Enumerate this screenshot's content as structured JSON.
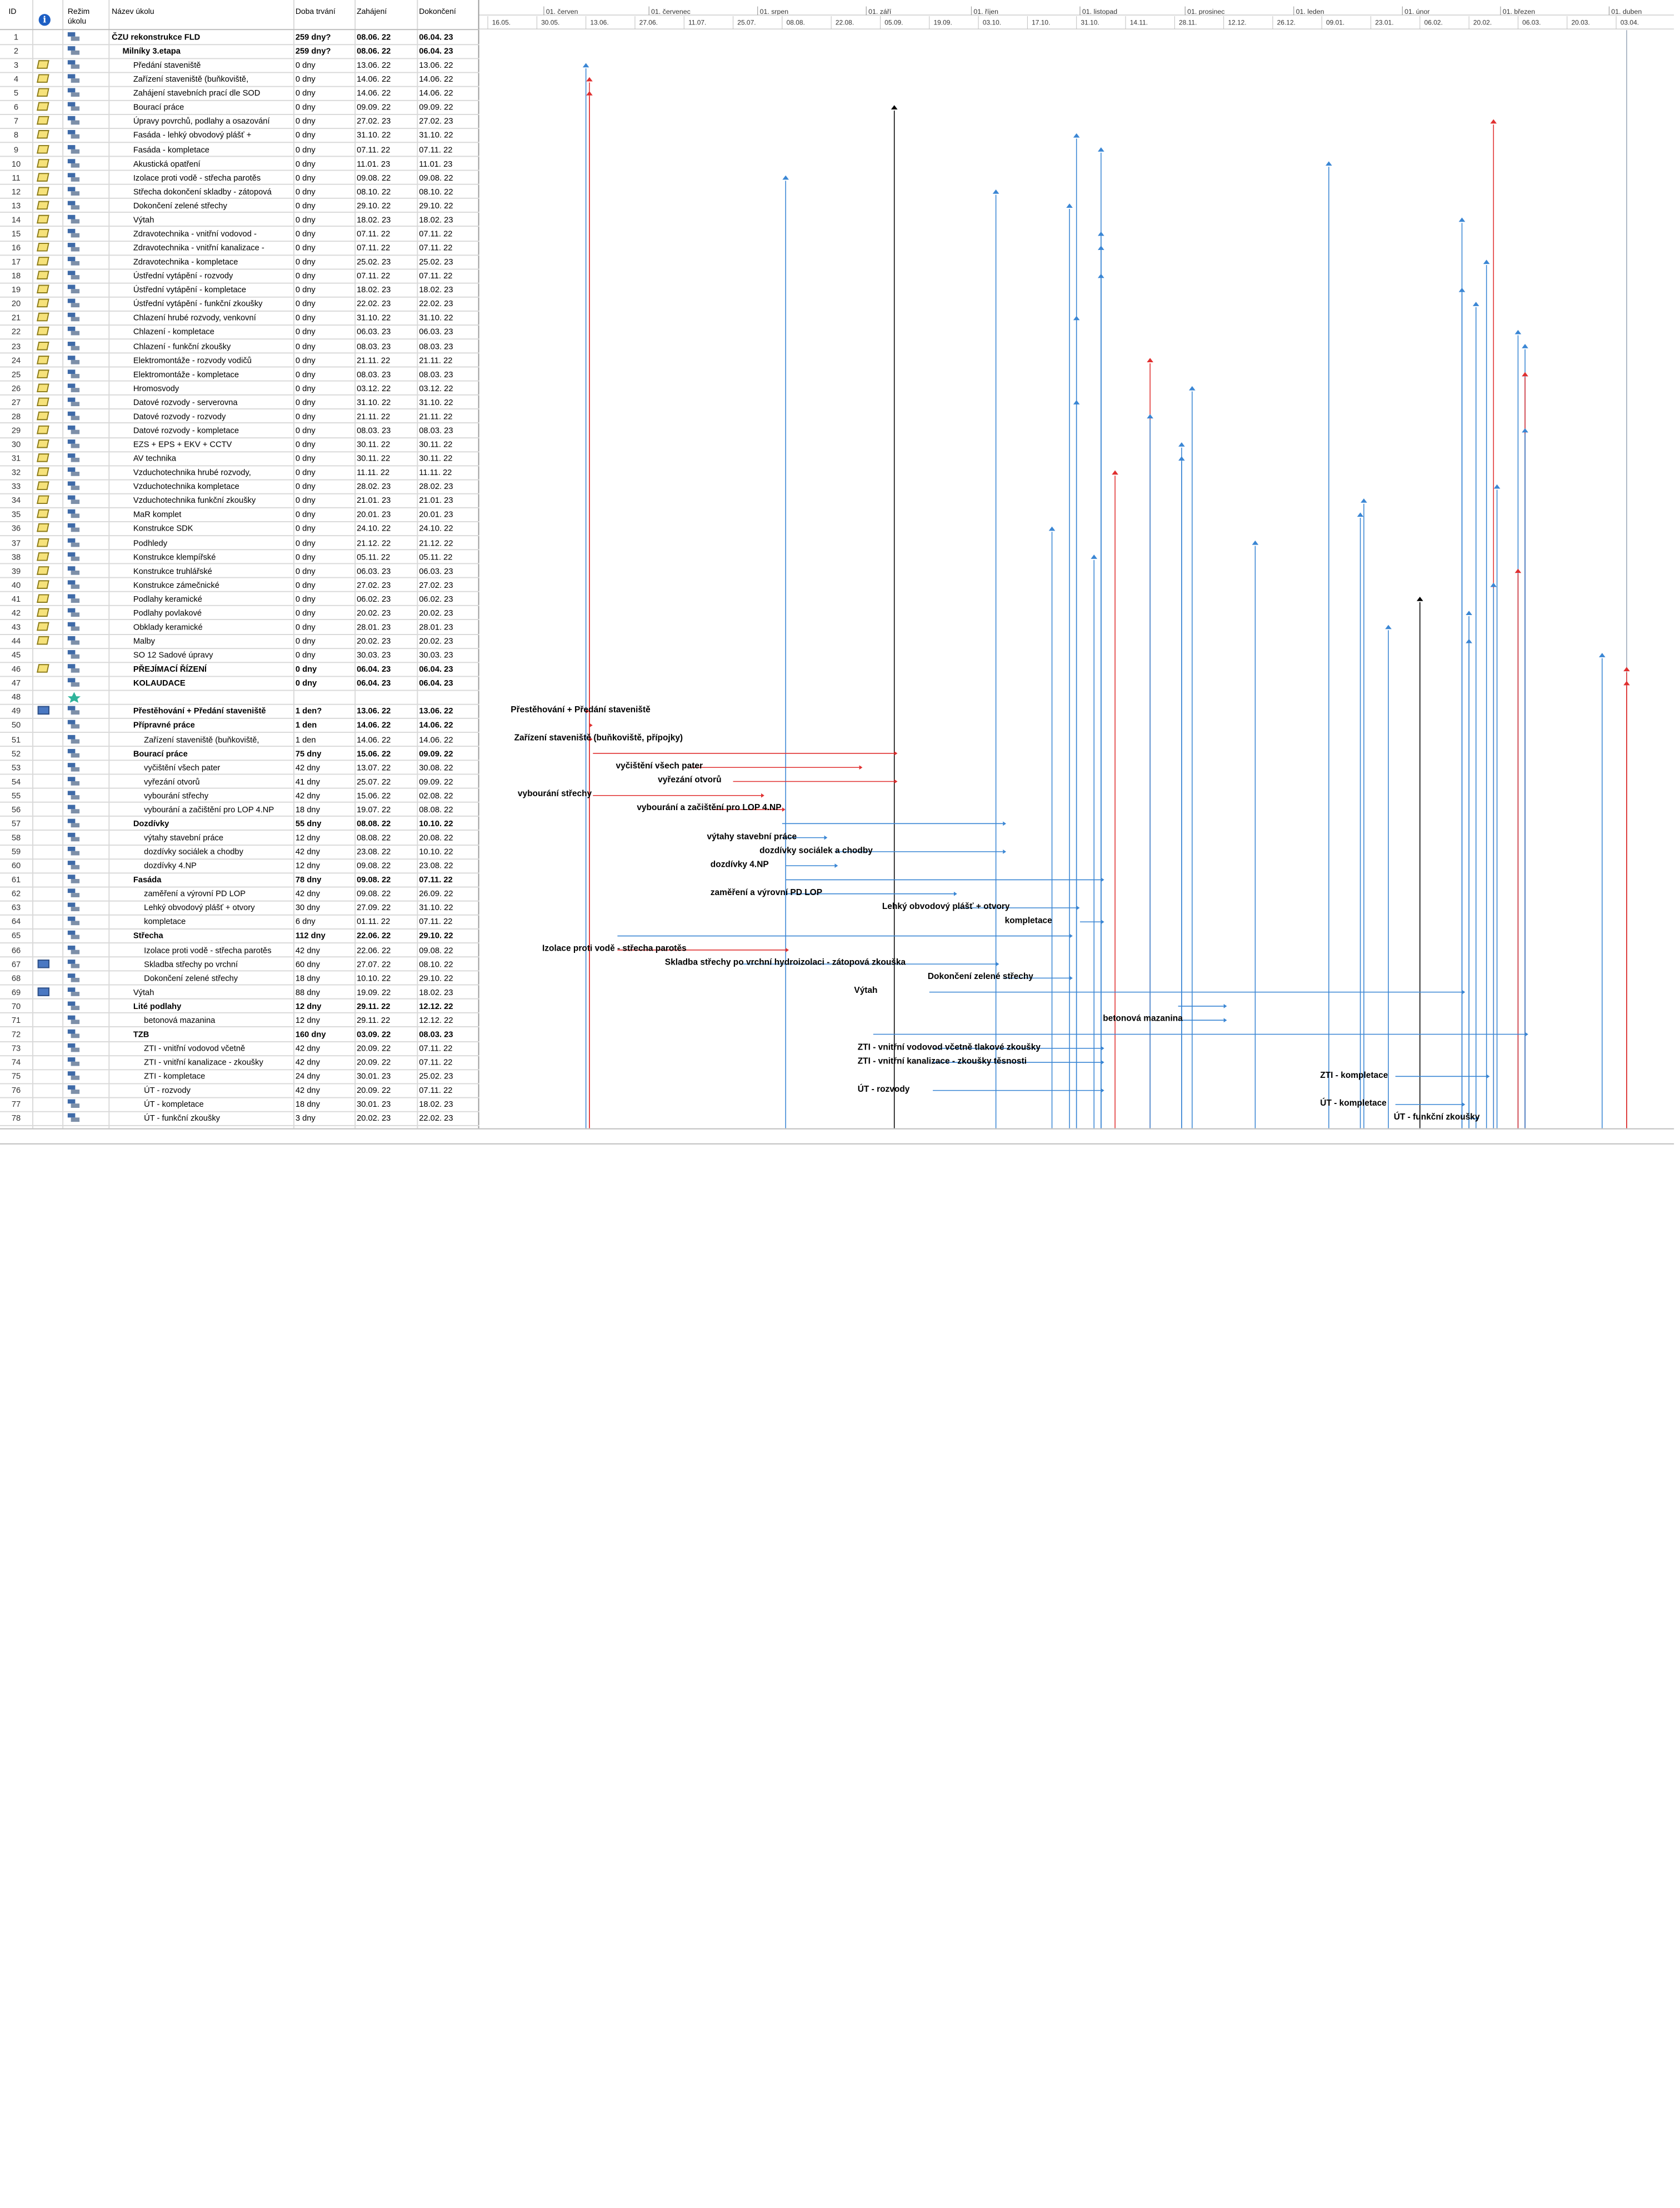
{
  "columns": {
    "id": "ID",
    "mode": "Režim\núkolu",
    "name": "Název úkolu",
    "duration": "Doba trvání",
    "start": "Zahájení",
    "finish": "Dokončení"
  },
  "colors": {
    "critical": "#e03030",
    "normal": "#3a86d4",
    "milestone": "#000000",
    "grid": "#d9d9d9"
  },
  "timeline": {
    "months": [
      "01. červen",
      "01. červenec",
      "01. srpen",
      "01. září",
      "01. říjen",
      "01. listopad",
      "01. prosinec",
      "01. leden",
      "01. únor",
      "01. březen",
      "01. duben"
    ],
    "weeks": [
      "16.05.",
      "30.05.",
      "13.06.",
      "27.06.",
      "11.07.",
      "25.07.",
      "08.08.",
      "22.08.",
      "05.09.",
      "19.09.",
      "03.10.",
      "17.10.",
      "31.10.",
      "14.11.",
      "28.11.",
      "12.12.",
      "26.12.",
      "09.01.",
      "23.01.",
      "06.02.",
      "20.02.",
      "06.03.",
      "20.03.",
      "03.04."
    ]
  },
  "tasks": [
    {
      "id": "1",
      "name": "ČZU rekonstrukce FLD",
      "duration": "259 dny?",
      "start": "08.06. 22",
      "finish": "06.04. 23",
      "bold": true,
      "indent": 0,
      "ind": ""
    },
    {
      "id": "2",
      "name": "Milníky 3.etapa",
      "duration": "259 dny?",
      "start": "08.06. 22",
      "finish": "06.04. 23",
      "bold": true,
      "indent": 1,
      "ind": ""
    },
    {
      "id": "3",
      "name": "Předání staveniště",
      "duration": "0 dny",
      "start": "13.06. 22",
      "finish": "13.06. 22",
      "bold": false,
      "indent": 2,
      "ind": "note"
    },
    {
      "id": "4",
      "name": "Zařízení staveniště (buňkoviště,",
      "duration": "0 dny",
      "start": "14.06. 22",
      "finish": "14.06. 22",
      "bold": false,
      "indent": 2,
      "ind": "note"
    },
    {
      "id": "5",
      "name": "Zahájení stavebních prací dle SOD",
      "duration": "0 dny",
      "start": "14.06. 22",
      "finish": "14.06. 22",
      "bold": false,
      "indent": 2,
      "ind": "note"
    },
    {
      "id": "6",
      "name": "Bourací práce",
      "duration": "0 dny",
      "start": "09.09. 22",
      "finish": "09.09. 22",
      "bold": false,
      "indent": 2,
      "ind": "note"
    },
    {
      "id": "7",
      "name": "Úpravy povrchů, podlahy a osazování",
      "duration": "0 dny",
      "start": "27.02. 23",
      "finish": "27.02. 23",
      "bold": false,
      "indent": 2,
      "ind": "note"
    },
    {
      "id": "8",
      "name": "Fasáda - lehký obvodový plášť +",
      "duration": "0 dny",
      "start": "31.10. 22",
      "finish": "31.10. 22",
      "bold": false,
      "indent": 2,
      "ind": "note"
    },
    {
      "id": "9",
      "name": "Fasáda - kompletace",
      "duration": "0 dny",
      "start": "07.11. 22",
      "finish": "07.11. 22",
      "bold": false,
      "indent": 2,
      "ind": "note"
    },
    {
      "id": "10",
      "name": "Akustická opatření",
      "duration": "0 dny",
      "start": "11.01. 23",
      "finish": "11.01. 23",
      "bold": false,
      "indent": 2,
      "ind": "note"
    },
    {
      "id": "11",
      "name": "Izolace proti vodě - střecha parotěs",
      "duration": "0 dny",
      "start": "09.08. 22",
      "finish": "09.08. 22",
      "bold": false,
      "indent": 2,
      "ind": "note"
    },
    {
      "id": "12",
      "name": "Střecha dokončení skladby - zátopová",
      "duration": "0 dny",
      "start": "08.10. 22",
      "finish": "08.10. 22",
      "bold": false,
      "indent": 2,
      "ind": "note"
    },
    {
      "id": "13",
      "name": "Dokončení zelené střechy",
      "duration": "0 dny",
      "start": "29.10. 22",
      "finish": "29.10. 22",
      "bold": false,
      "indent": 2,
      "ind": "note"
    },
    {
      "id": "14",
      "name": "Výtah",
      "duration": "0 dny",
      "start": "18.02. 23",
      "finish": "18.02. 23",
      "bold": false,
      "indent": 2,
      "ind": "note"
    },
    {
      "id": "15",
      "name": "Zdravotechnika - vnitřní vodovod -",
      "duration": "0 dny",
      "start": "07.11. 22",
      "finish": "07.11. 22",
      "bold": false,
      "indent": 2,
      "ind": "note"
    },
    {
      "id": "16",
      "name": "Zdravotechnika - vnitřní kanalizace -",
      "duration": "0 dny",
      "start": "07.11. 22",
      "finish": "07.11. 22",
      "bold": false,
      "indent": 2,
      "ind": "note"
    },
    {
      "id": "17",
      "name": "Zdravotechnika - kompletace",
      "duration": "0 dny",
      "start": "25.02. 23",
      "finish": "25.02. 23",
      "bold": false,
      "indent": 2,
      "ind": "note"
    },
    {
      "id": "18",
      "name": "Ústřední vytápění - rozvody",
      "duration": "0 dny",
      "start": "07.11. 22",
      "finish": "07.11. 22",
      "bold": false,
      "indent": 2,
      "ind": "note"
    },
    {
      "id": "19",
      "name": "Ústřední vytápění - kompletace",
      "duration": "0 dny",
      "start": "18.02. 23",
      "finish": "18.02. 23",
      "bold": false,
      "indent": 2,
      "ind": "note"
    },
    {
      "id": "20",
      "name": "Ústřední vytápění - funkční zkoušky",
      "duration": "0 dny",
      "start": "22.02. 23",
      "finish": "22.02. 23",
      "bold": false,
      "indent": 2,
      "ind": "note"
    },
    {
      "id": "21",
      "name": "Chlazení hrubé rozvody, venkovní",
      "duration": "0 dny",
      "start": "31.10. 22",
      "finish": "31.10. 22",
      "bold": false,
      "indent": 2,
      "ind": "note"
    },
    {
      "id": "22",
      "name": "Chlazení - kompletace",
      "duration": "0 dny",
      "start": "06.03. 23",
      "finish": "06.03. 23",
      "bold": false,
      "indent": 2,
      "ind": "note"
    },
    {
      "id": "23",
      "name": "Chlazení - funkční zkoušky",
      "duration": "0 dny",
      "start": "08.03. 23",
      "finish": "08.03. 23",
      "bold": false,
      "indent": 2,
      "ind": "note"
    },
    {
      "id": "24",
      "name": "Elektromontáže - rozvody vodičů",
      "duration": "0 dny",
      "start": "21.11. 22",
      "finish": "21.11. 22",
      "bold": false,
      "indent": 2,
      "ind": "note"
    },
    {
      "id": "25",
      "name": "Elektromontáže - kompletace",
      "duration": "0 dny",
      "start": "08.03. 23",
      "finish": "08.03. 23",
      "bold": false,
      "indent": 2,
      "ind": "note"
    },
    {
      "id": "26",
      "name": "Hromosvody",
      "duration": "0 dny",
      "start": "03.12. 22",
      "finish": "03.12. 22",
      "bold": false,
      "indent": 2,
      "ind": "note"
    },
    {
      "id": "27",
      "name": "Datové rozvody - serverovna",
      "duration": "0 dny",
      "start": "31.10. 22",
      "finish": "31.10. 22",
      "bold": false,
      "indent": 2,
      "ind": "note"
    },
    {
      "id": "28",
      "name": "Datové rozvody - rozvody",
      "duration": "0 dny",
      "start": "21.11. 22",
      "finish": "21.11. 22",
      "bold": false,
      "indent": 2,
      "ind": "note"
    },
    {
      "id": "29",
      "name": "Datové rozvody - kompletace",
      "duration": "0 dny",
      "start": "08.03. 23",
      "finish": "08.03. 23",
      "bold": false,
      "indent": 2,
      "ind": "note"
    },
    {
      "id": "30",
      "name": "EZS + EPS + EKV + CCTV",
      "duration": "0 dny",
      "start": "30.11. 22",
      "finish": "30.11. 22",
      "bold": false,
      "indent": 2,
      "ind": "note"
    },
    {
      "id": "31",
      "name": "AV technika",
      "duration": "0 dny",
      "start": "30.11. 22",
      "finish": "30.11. 22",
      "bold": false,
      "indent": 2,
      "ind": "note"
    },
    {
      "id": "32",
      "name": "Vzduchotechnika hrubé rozvody,",
      "duration": "0 dny",
      "start": "11.11. 22",
      "finish": "11.11. 22",
      "bold": false,
      "indent": 2,
      "ind": "note"
    },
    {
      "id": "33",
      "name": "Vzduchotechnika kompletace",
      "duration": "0 dny",
      "start": "28.02. 23",
      "finish": "28.02. 23",
      "bold": false,
      "indent": 2,
      "ind": "note"
    },
    {
      "id": "34",
      "name": "Vzduchotechnika funkční zkoušky",
      "duration": "0 dny",
      "start": "21.01. 23",
      "finish": "21.01. 23",
      "bold": false,
      "indent": 2,
      "ind": "note"
    },
    {
      "id": "35",
      "name": "MaR komplet",
      "duration": "0 dny",
      "start": "20.01. 23",
      "finish": "20.01. 23",
      "bold": false,
      "indent": 2,
      "ind": "note"
    },
    {
      "id": "36",
      "name": "Konstrukce SDK",
      "duration": "0 dny",
      "start": "24.10. 22",
      "finish": "24.10. 22",
      "bold": false,
      "indent": 2,
      "ind": "note"
    },
    {
      "id": "37",
      "name": "Podhledy",
      "duration": "0 dny",
      "start": "21.12. 22",
      "finish": "21.12. 22",
      "bold": false,
      "indent": 2,
      "ind": "note"
    },
    {
      "id": "38",
      "name": "Konstrukce klempířské",
      "duration": "0 dny",
      "start": "05.11. 22",
      "finish": "05.11. 22",
      "bold": false,
      "indent": 2,
      "ind": "note"
    },
    {
      "id": "39",
      "name": "Konstrukce truhlářské",
      "duration": "0 dny",
      "start": "06.03. 23",
      "finish": "06.03. 23",
      "bold": false,
      "indent": 2,
      "ind": "note"
    },
    {
      "id": "40",
      "name": "Konstrukce zámečnické",
      "duration": "0 dny",
      "start": "27.02. 23",
      "finish": "27.02. 23",
      "bold": false,
      "indent": 2,
      "ind": "note"
    },
    {
      "id": "41",
      "name": "Podlahy keramické",
      "duration": "0 dny",
      "start": "06.02. 23",
      "finish": "06.02. 23",
      "bold": false,
      "indent": 2,
      "ind": "note"
    },
    {
      "id": "42",
      "name": "Podlahy povlakové",
      "duration": "0 dny",
      "start": "20.02. 23",
      "finish": "20.02. 23",
      "bold": false,
      "indent": 2,
      "ind": "note"
    },
    {
      "id": "43",
      "name": "Obklady keramické",
      "duration": "0 dny",
      "start": "28.01. 23",
      "finish": "28.01. 23",
      "bold": false,
      "indent": 2,
      "ind": "note"
    },
    {
      "id": "44",
      "name": "Malby",
      "duration": "0 dny",
      "start": "20.02. 23",
      "finish": "20.02. 23",
      "bold": false,
      "indent": 2,
      "ind": "note"
    },
    {
      "id": "45",
      "name": "SO 12 Sadové úpravy",
      "duration": "0 dny",
      "start": "30.03. 23",
      "finish": "30.03. 23",
      "bold": false,
      "indent": 2,
      "ind": ""
    },
    {
      "id": "46",
      "name": "PŘEJÍMACÍ ŘÍZENÍ",
      "duration": "0 dny",
      "start": "06.04. 23",
      "finish": "06.04. 23",
      "bold": true,
      "indent": 2,
      "ind": "note"
    },
    {
      "id": "47",
      "name": "KOLAUDACE",
      "duration": "0 dny",
      "start": "06.04. 23",
      "finish": "06.04. 23",
      "bold": true,
      "indent": 2,
      "ind": ""
    },
    {
      "id": "48",
      "name": "",
      "duration": "",
      "start": "",
      "finish": "",
      "bold": false,
      "indent": 2,
      "ind": ""
    },
    {
      "id": "49",
      "name": "Přestěhování + Předání staveniště",
      "duration": "1 den?",
      "start": "13.06. 22",
      "finish": "13.06. 22",
      "bold": true,
      "indent": 2,
      "ind": "cal"
    },
    {
      "id": "50",
      "name": "Přípravné práce",
      "duration": "1 den",
      "start": "14.06. 22",
      "finish": "14.06. 22",
      "bold": true,
      "indent": 2,
      "ind": ""
    },
    {
      "id": "51",
      "name": "Zařízení staveniště (buňkoviště,",
      "duration": "1 den",
      "start": "14.06. 22",
      "finish": "14.06. 22",
      "bold": false,
      "indent": 3,
      "ind": ""
    },
    {
      "id": "52",
      "name": "Bourací práce",
      "duration": "75 dny",
      "start": "15.06. 22",
      "finish": "09.09. 22",
      "bold": true,
      "indent": 2,
      "ind": ""
    },
    {
      "id": "53",
      "name": "vyčištění všech pater",
      "duration": "42 dny",
      "start": "13.07. 22",
      "finish": "30.08. 22",
      "bold": false,
      "indent": 3,
      "ind": ""
    },
    {
      "id": "54",
      "name": "vyřezání otvorů",
      "duration": "41 dny",
      "start": "25.07. 22",
      "finish": "09.09. 22",
      "bold": false,
      "indent": 3,
      "ind": ""
    },
    {
      "id": "55",
      "name": "vybourání střechy",
      "duration": "42 dny",
      "start": "15.06. 22",
      "finish": "02.08. 22",
      "bold": false,
      "indent": 3,
      "ind": ""
    },
    {
      "id": "56",
      "name": "vybourání a začištění pro LOP 4.NP",
      "duration": "18 dny",
      "start": "19.07. 22",
      "finish": "08.08. 22",
      "bold": false,
      "indent": 3,
      "ind": ""
    },
    {
      "id": "57",
      "name": "Dozdívky",
      "duration": "55 dny",
      "start": "08.08. 22",
      "finish": "10.10. 22",
      "bold": true,
      "indent": 2,
      "ind": ""
    },
    {
      "id": "58",
      "name": "výtahy stavební práce",
      "duration": "12 dny",
      "start": "08.08. 22",
      "finish": "20.08. 22",
      "bold": false,
      "indent": 3,
      "ind": ""
    },
    {
      "id": "59",
      "name": "dozdívky sociálek a chodby",
      "duration": "42 dny",
      "start": "23.08. 22",
      "finish": "10.10. 22",
      "bold": false,
      "indent": 3,
      "ind": ""
    },
    {
      "id": "60",
      "name": "dozdívky 4.NP",
      "duration": "12 dny",
      "start": "09.08. 22",
      "finish": "23.08. 22",
      "bold": false,
      "indent": 3,
      "ind": ""
    },
    {
      "id": "61",
      "name": "Fasáda",
      "duration": "78 dny",
      "start": "09.08. 22",
      "finish": "07.11. 22",
      "bold": true,
      "indent": 2,
      "ind": ""
    },
    {
      "id": "62",
      "name": "zaměření a výrovní PD LOP",
      "duration": "42 dny",
      "start": "09.08. 22",
      "finish": "26.09. 22",
      "bold": false,
      "indent": 3,
      "ind": ""
    },
    {
      "id": "63",
      "name": "Lehký obvodový plášť + otvory",
      "duration": "30 dny",
      "start": "27.09. 22",
      "finish": "31.10. 22",
      "bold": false,
      "indent": 3,
      "ind": ""
    },
    {
      "id": "64",
      "name": "kompletace",
      "duration": "6 dny",
      "start": "01.11. 22",
      "finish": "07.11. 22",
      "bold": false,
      "indent": 3,
      "ind": ""
    },
    {
      "id": "65",
      "name": "Střecha",
      "duration": "112 dny",
      "start": "22.06. 22",
      "finish": "29.10. 22",
      "bold": true,
      "indent": 2,
      "ind": ""
    },
    {
      "id": "66",
      "name": "Izolace proti vodě - střecha parotěs",
      "duration": "42 dny",
      "start": "22.06. 22",
      "finish": "09.08. 22",
      "bold": false,
      "indent": 3,
      "ind": ""
    },
    {
      "id": "67",
      "name": "Skladba střechy po vrchní",
      "duration": "60 dny",
      "start": "27.07. 22",
      "finish": "08.10. 22",
      "bold": false,
      "indent": 3,
      "ind": "cal"
    },
    {
      "id": "68",
      "name": "Dokončení zelené střechy",
      "duration": "18 dny",
      "start": "10.10. 22",
      "finish": "29.10. 22",
      "bold": false,
      "indent": 3,
      "ind": ""
    },
    {
      "id": "69",
      "name": "Výtah",
      "duration": "88 dny",
      "start": "19.09. 22",
      "finish": "18.02. 23",
      "bold": false,
      "indent": 2,
      "ind": "cal"
    },
    {
      "id": "70",
      "name": "Lité podlahy",
      "duration": "12 dny",
      "start": "29.11. 22",
      "finish": "12.12. 22",
      "bold": true,
      "indent": 2,
      "ind": ""
    },
    {
      "id": "71",
      "name": "betonová mazanina",
      "duration": "12 dny",
      "start": "29.11. 22",
      "finish": "12.12. 22",
      "bold": false,
      "indent": 3,
      "ind": ""
    },
    {
      "id": "72",
      "name": "TZB",
      "duration": "160 dny",
      "start": "03.09. 22",
      "finish": "08.03. 23",
      "bold": true,
      "indent": 2,
      "ind": ""
    },
    {
      "id": "73",
      "name": "ZTI - vnitřní vodovod včetně",
      "duration": "42 dny",
      "start": "20.09. 22",
      "finish": "07.11. 22",
      "bold": false,
      "indent": 3,
      "ind": ""
    },
    {
      "id": "74",
      "name": "ZTI - vnitřní kanalizace - zkoušky",
      "duration": "42 dny",
      "start": "20.09. 22",
      "finish": "07.11. 22",
      "bold": false,
      "indent": 3,
      "ind": ""
    },
    {
      "id": "75",
      "name": "ZTI - kompletace",
      "duration": "24 dny",
      "start": "30.01. 23",
      "finish": "25.02. 23",
      "bold": false,
      "indent": 3,
      "ind": ""
    },
    {
      "id": "76",
      "name": "ÚT - rozvody",
      "duration": "42 dny",
      "start": "20.09. 22",
      "finish": "07.11. 22",
      "bold": false,
      "indent": 3,
      "ind": ""
    },
    {
      "id": "77",
      "name": "ÚT - kompletace",
      "duration": "18 dny",
      "start": "30.01. 23",
      "finish": "18.02. 23",
      "bold": false,
      "indent": 3,
      "ind": ""
    },
    {
      "id": "78",
      "name": "ÚT - funkční zkoušky",
      "duration": "3 dny",
      "start": "20.02. 23",
      "finish": "22.02. 23",
      "bold": false,
      "indent": 3,
      "ind": ""
    }
  ],
  "gantt_labels": [
    {
      "row": "49",
      "text": "Přestěhování + Předání staveniště"
    },
    {
      "row": "51",
      "text": "Zařízení staveniště (buňkoviště, přípojky)"
    },
    {
      "row": "53",
      "text": "vyčištění všech pater"
    },
    {
      "row": "54",
      "text": "vyřezání otvorů"
    },
    {
      "row": "55",
      "text": "vybourání střechy"
    },
    {
      "row": "56",
      "text": "vybourání a začištění pro LOP 4.NP"
    },
    {
      "row": "58",
      "text": "výtahy stavební práce"
    },
    {
      "row": "59",
      "text": "dozdívky sociálek a chodby"
    },
    {
      "row": "60",
      "text": "dozdívky 4.NP"
    },
    {
      "row": "62",
      "text": "zaměření a výrovní PD LOP"
    },
    {
      "row": "63",
      "text": "Lehký obvodový plášť + otvory"
    },
    {
      "row": "64",
      "text": "kompletace"
    },
    {
      "row": "66",
      "text": "Izolace proti vodě - střecha parotěs"
    },
    {
      "row": "67",
      "text": "Skladba střechy po vrchní hydroizolaci - zátopová zkouška"
    },
    {
      "row": "68",
      "text": "Dokončení zelené střechy"
    },
    {
      "row": "69",
      "text": "Výtah"
    },
    {
      "row": "71",
      "text": "betonová mazanina"
    },
    {
      "row": "73",
      "text": "ZTI - vnitřní vodovod včetně tlakové zkoušky"
    },
    {
      "row": "74",
      "text": "ZTI - vnitřní kanalizace - zkoušky těsnosti"
    },
    {
      "row": "75",
      "text": "ZTI - kompletace"
    },
    {
      "row": "76",
      "text": "ÚT - rozvody"
    },
    {
      "row": "77",
      "text": "ÚT - kompletace"
    },
    {
      "row": "78",
      "text": "ÚT - funkční zkoušky"
    }
  ]
}
